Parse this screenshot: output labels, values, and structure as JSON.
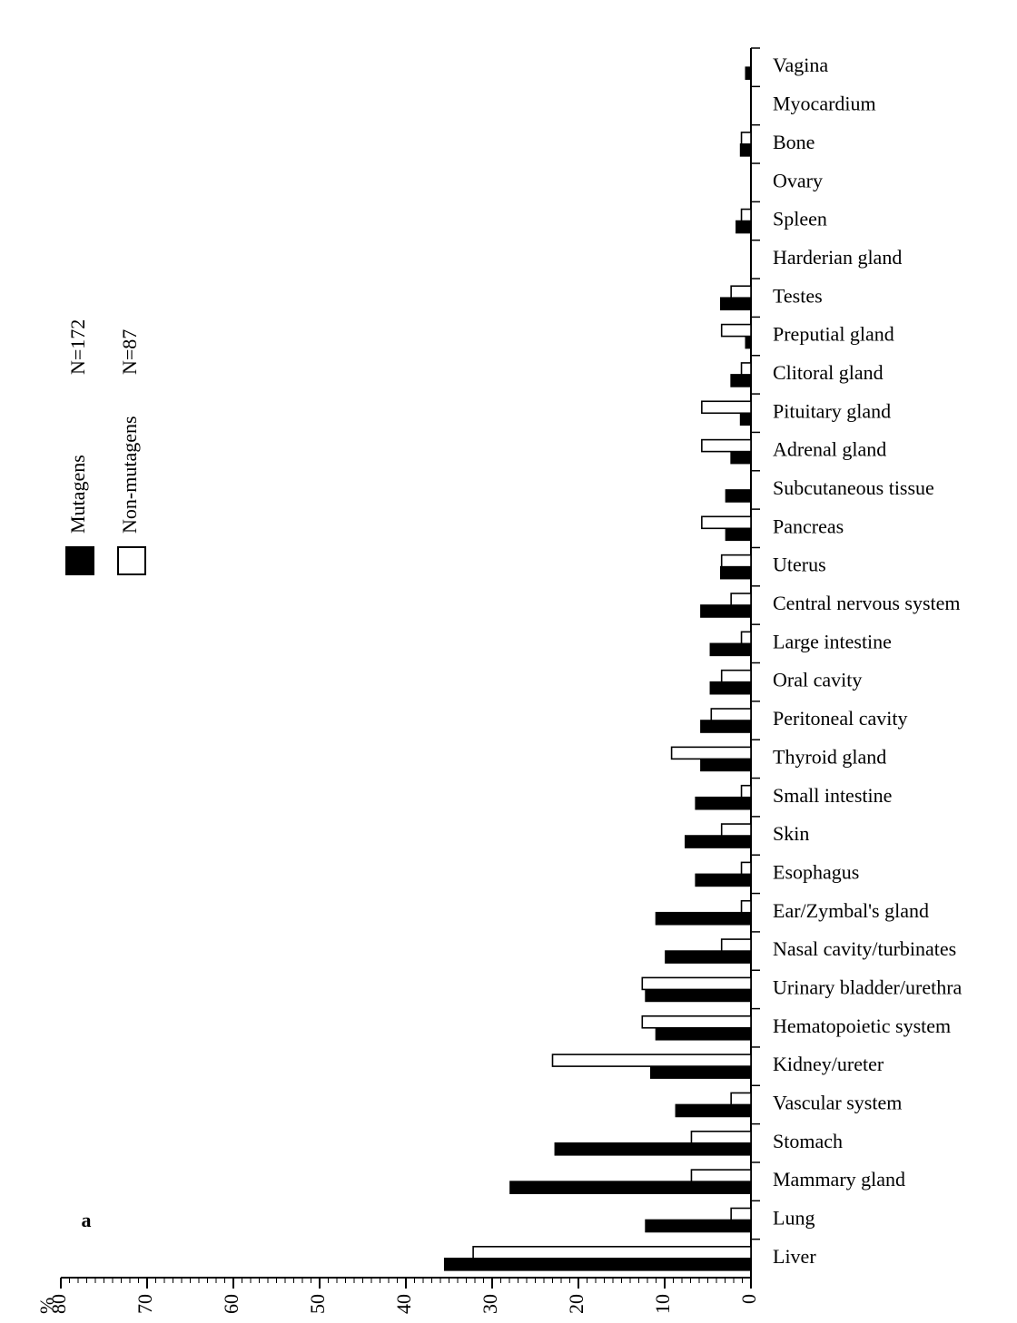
{
  "chart_data": {
    "type": "bar",
    "orientation": "horizontal",
    "panel_label": "a",
    "ylabel": "%",
    "ylim": [
      0,
      80
    ],
    "major_ticks": [
      0,
      10,
      20,
      30,
      40,
      50,
      60,
      70,
      80
    ],
    "minor_tick_step": 1,
    "grid": false,
    "legend_placement": "top-right",
    "categories": [
      "Liver",
      "Lung",
      "Mammary gland",
      "Stomach",
      "Vascular system",
      "Kidney/ureter",
      "Hematopoietic system",
      "Urinary bladder/urethra",
      "Nasal cavity/turbinates",
      "Ear/Zymbal's gland",
      "Esophagus",
      "Skin",
      "Small intestine",
      "Thyroid gland",
      "Peritoneal cavity",
      "Oral cavity",
      "Large intestine",
      "Central nervous system",
      "Uterus",
      "Pancreas",
      "Subcutaneous tissue",
      "Adrenal gland",
      "Pituitary gland",
      "Clitoral gland",
      "Preputial gland",
      "Testes",
      "Harderian gland",
      "Spleen",
      "Ovary",
      "Bone",
      "Myocardium",
      "Vagina"
    ],
    "series": [
      {
        "name": "Mutagens",
        "legend_n": "N=172",
        "fill": "#000000",
        "values": [
          35.5,
          12.2,
          27.9,
          22.7,
          8.7,
          11.6,
          11.0,
          12.2,
          9.9,
          11.0,
          6.4,
          7.6,
          6.4,
          5.8,
          5.8,
          4.7,
          4.7,
          5.8,
          3.5,
          2.9,
          2.9,
          2.3,
          1.2,
          2.3,
          0.6,
          3.5,
          0,
          1.7,
          0,
          1.2,
          0,
          0.6
        ]
      },
      {
        "name": "Non-mutagens",
        "legend_n": "N=87",
        "fill": "#ffffff",
        "values": [
          32.2,
          2.3,
          6.9,
          6.9,
          2.3,
          23.0,
          12.6,
          12.6,
          3.4,
          1.1,
          1.1,
          3.4,
          1.1,
          9.2,
          4.6,
          3.4,
          1.1,
          2.3,
          3.4,
          5.7,
          0,
          5.7,
          5.7,
          1.1,
          3.4,
          2.3,
          0,
          1.1,
          0,
          1.1,
          0,
          0
        ]
      }
    ]
  }
}
